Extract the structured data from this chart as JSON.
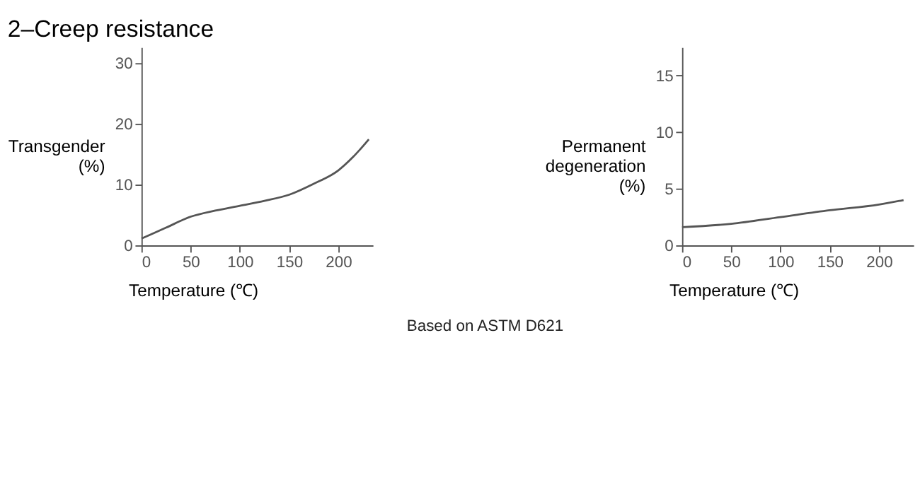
{
  "chart_data": [
    {
      "type": "line",
      "title": "2–Creep resistance",
      "xlabel": "Temperature (℃)",
      "ylabel": "Transgender (%)",
      "x": [
        0,
        25,
        50,
        75,
        100,
        125,
        150,
        175,
        200,
        215,
        231
      ],
      "series": [
        {
          "color": "#555555",
          "values": [
            1.1,
            2.9,
            4.7,
            5.7,
            6.5,
            7.3,
            8.3,
            10.1,
            12.3,
            14.5,
            17.4
          ]
        }
      ],
      "xlim": [
        0,
        235
      ],
      "ylim": [
        0,
        32.5
      ],
      "xticks": [
        0,
        50,
        100,
        150,
        200
      ],
      "yticks": [
        0,
        10,
        20,
        30
      ],
      "grid": false
    },
    {
      "type": "line",
      "xlabel": "Temperature (℃)",
      "ylabel": "Permanent degeneration (%)",
      "x": [
        0,
        50,
        100,
        150,
        200,
        225
      ],
      "series": [
        {
          "color": "#555555",
          "values": [
            1.6,
            1.9,
            2.5,
            3.1,
            3.6,
            4.0
          ]
        }
      ],
      "xlim": [
        0,
        235
      ],
      "ylim": [
        0,
        17.5
      ],
      "xticks": [
        0,
        50,
        100,
        150,
        200
      ],
      "yticks": [
        0,
        5,
        10,
        15
      ],
      "grid": false,
      "annotations": [
        "Based on ASTM D621"
      ]
    }
  ]
}
